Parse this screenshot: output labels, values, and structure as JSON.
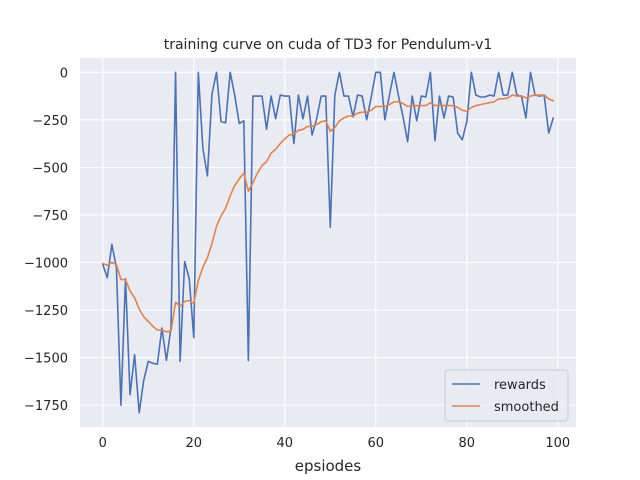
{
  "chart_data": {
    "type": "line",
    "title": "training curve on cuda of TD3 for Pendulum-v1",
    "xlabel": "epsiodes",
    "ylabel": "",
    "xlim": [
      -5,
      104
    ],
    "ylim": [
      -1865,
      75
    ],
    "xticks": [
      0,
      20,
      40,
      60,
      80,
      100
    ],
    "yticks": [
      0,
      -250,
      -500,
      -750,
      -1000,
      -1250,
      -1500,
      -1750
    ],
    "x": [
      0,
      1,
      2,
      3,
      4,
      5,
      6,
      7,
      8,
      9,
      10,
      11,
      12,
      13,
      14,
      15,
      16,
      17,
      18,
      19,
      20,
      21,
      22,
      23,
      24,
      25,
      26,
      27,
      28,
      29,
      30,
      31,
      32,
      33,
      34,
      35,
      36,
      37,
      38,
      39,
      40,
      41,
      42,
      43,
      44,
      45,
      46,
      47,
      48,
      49,
      50,
      51,
      52,
      53,
      54,
      55,
      56,
      57,
      58,
      59,
      60,
      61,
      62,
      63,
      64,
      65,
      66,
      67,
      68,
      69,
      70,
      71,
      72,
      73,
      74,
      75,
      76,
      77,
      78,
      79,
      80,
      81,
      82,
      83,
      84,
      85,
      86,
      87,
      88,
      89,
      90,
      91,
      92,
      93,
      94,
      95,
      96,
      97,
      98,
      99
    ],
    "series": [
      {
        "name": "rewards",
        "color": "#4c72b0",
        "values": [
          -1010,
          -1080,
          -905,
          -1025,
          -1750,
          -1085,
          -1695,
          -1485,
          -1790,
          -1620,
          -1520,
          -1530,
          -1535,
          -1345,
          -1515,
          -1340,
          0,
          -1520,
          -995,
          -1085,
          -1395,
          0,
          -400,
          -545,
          -115,
          0,
          -260,
          -265,
          0,
          -120,
          -270,
          -255,
          -1515,
          -125,
          -125,
          -125,
          -300,
          -125,
          -245,
          -120,
          -125,
          -125,
          -375,
          -120,
          -245,
          -125,
          -330,
          -245,
          -125,
          -125,
          -815,
          -120,
          0,
          -125,
          -125,
          -235,
          -120,
          -125,
          -250,
          -130,
          0,
          0,
          -250,
          -120,
          0,
          -125,
          -235,
          -365,
          -125,
          -255,
          -125,
          -130,
          0,
          -360,
          -125,
          -240,
          -125,
          -130,
          -320,
          -355,
          -260,
          0,
          -120,
          -130,
          -130,
          -120,
          -125,
          0,
          -120,
          -120,
          0,
          -120,
          -125,
          -240,
          0,
          -120,
          -125,
          -120,
          -320,
          -240
        ]
      },
      {
        "name": "smoothed",
        "color": "#dd8452",
        "values": [
          -1005,
          -1015,
          -1000,
          -1010,
          -1090,
          -1090,
          -1150,
          -1185,
          -1245,
          -1285,
          -1310,
          -1335,
          -1355,
          -1355,
          -1365,
          -1360,
          -1210,
          -1230,
          -1205,
          -1200,
          -1215,
          -1095,
          -1025,
          -975,
          -900,
          -810,
          -755,
          -715,
          -650,
          -595,
          -560,
          -530,
          -625,
          -580,
          -530,
          -490,
          -470,
          -425,
          -405,
          -375,
          -350,
          -330,
          -325,
          -305,
          -300,
          -285,
          -285,
          -275,
          -260,
          -255,
          -310,
          -290,
          -255,
          -240,
          -230,
          -230,
          -215,
          -210,
          -210,
          -200,
          -180,
          -180,
          -180,
          -170,
          -155,
          -155,
          -165,
          -180,
          -175,
          -175,
          -175,
          -175,
          -160,
          -175,
          -175,
          -175,
          -175,
          -175,
          -185,
          -200,
          -205,
          -185,
          -175,
          -170,
          -165,
          -160,
          -155,
          -140,
          -140,
          -135,
          -120,
          -125,
          -125,
          -135,
          -125,
          -120,
          -120,
          -120,
          -140,
          -150
        ]
      }
    ],
    "legend": {
      "position": "lower-right"
    },
    "grid": true
  }
}
